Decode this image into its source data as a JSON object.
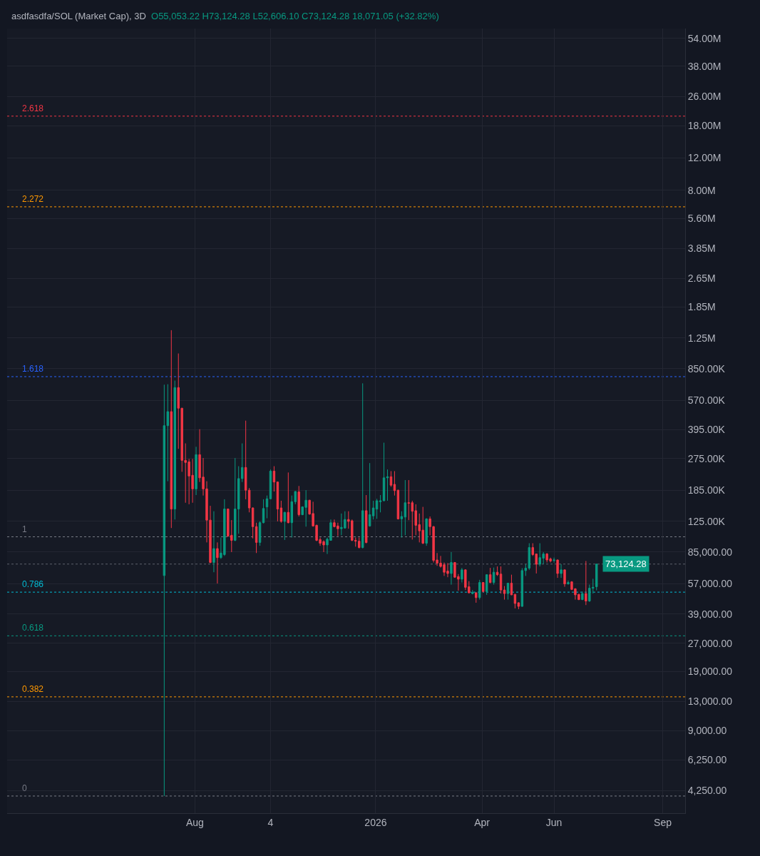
{
  "chart_data": {
    "type": "candlestick",
    "title": "asdfasdfa/SOL (Market Cap), 3D",
    "subtitle": "O55,053.22 H73,124.28 L52,606.10 C73,124.28 18,071.05 (+32.82%)",
    "x": [
      "2025-07-06",
      "2025-07-09",
      "2025-07-12",
      "2025-07-15",
      "2025-07-18",
      "2025-07-21",
      "2025-07-24",
      "2025-07-27",
      "2025-07-30",
      "2025-08-02",
      "2025-08-05",
      "2025-08-08",
      "2025-08-11",
      "2025-08-14",
      "2025-08-17",
      "2025-08-20",
      "2025-08-23",
      "2025-08-26",
      "2025-08-29",
      "2025-09-01",
      "2025-09-04",
      "2025-09-07",
      "2025-09-10",
      "2025-09-13",
      "2025-09-16",
      "2025-09-19",
      "2025-09-22",
      "2025-09-25",
      "2025-09-28",
      "2025-10-01",
      "2025-10-04",
      "2025-10-07",
      "2025-10-10",
      "2025-10-13",
      "2025-10-16",
      "2025-10-19",
      "2025-10-22",
      "2025-10-25",
      "2025-10-28",
      "2025-10-31",
      "2025-11-03",
      "2025-11-06",
      "2025-11-09",
      "2025-11-12",
      "2025-11-15",
      "2025-11-18",
      "2025-11-21",
      "2025-11-24",
      "2025-11-27",
      "2025-11-30",
      "2025-12-03",
      "2025-12-06",
      "2025-12-09",
      "2025-12-12",
      "2025-12-15",
      "2025-12-18",
      "2025-12-21",
      "2025-12-24",
      "2025-12-27",
      "2025-12-30",
      "2026-01-02",
      "2026-01-05",
      "2026-01-08",
      "2026-01-11",
      "2026-01-14",
      "2026-01-17",
      "2026-01-20",
      "2026-01-23",
      "2026-01-26",
      "2026-01-29",
      "2026-02-01",
      "2026-02-04",
      "2026-02-07",
      "2026-02-10",
      "2026-02-13",
      "2026-02-16",
      "2026-02-19",
      "2026-02-22",
      "2026-02-25",
      "2026-02-28",
      "2026-03-03",
      "2026-03-06",
      "2026-03-09",
      "2026-03-12",
      "2026-03-15",
      "2026-03-18",
      "2026-03-21",
      "2026-03-24",
      "2026-03-27",
      "2026-03-30",
      "2026-04-02",
      "2026-04-05",
      "2026-04-08",
      "2026-04-11",
      "2026-04-14",
      "2026-04-17",
      "2026-04-20",
      "2026-04-23",
      "2026-04-26",
      "2026-04-29",
      "2026-05-02",
      "2026-05-05",
      "2026-05-08",
      "2026-05-11",
      "2026-05-14",
      "2026-05-17",
      "2026-05-20",
      "2026-05-23",
      "2026-05-26",
      "2026-05-29",
      "2026-06-01",
      "2026-06-04",
      "2026-06-07",
      "2026-06-10",
      "2026-06-13",
      "2026-06-16",
      "2026-06-19",
      "2026-06-22",
      "2026-06-25",
      "2026-06-28",
      "2026-07-01",
      "2026-07-04",
      "2026-07-07"
    ],
    "ohlc": [
      [
        63300,
        696000,
        3970,
        416000
      ],
      [
        416000,
        700000,
        207000,
        496000
      ],
      [
        496000,
        1380000,
        115000,
        146000
      ],
      [
        146000,
        733000,
        128000,
        671000
      ],
      [
        671000,
        1030000,
        311000,
        518000
      ],
      [
        518000,
        520000,
        233000,
        269000
      ],
      [
        269000,
        333000,
        158000,
        262000
      ],
      [
        264000,
        274000,
        155000,
        221000
      ],
      [
        223000,
        274000,
        158000,
        188000
      ],
      [
        188000,
        319000,
        174000,
        289000
      ],
      [
        289000,
        398000,
        205000,
        216000
      ],
      [
        218000,
        277000,
        173000,
        188000
      ],
      [
        188000,
        207000,
        96000,
        127000
      ],
      [
        127000,
        152000,
        74000,
        74600
      ],
      [
        74600,
        142000,
        66000,
        88800
      ],
      [
        88800,
        96000,
        57300,
        79300
      ],
      [
        79300,
        102000,
        78000,
        84000
      ],
      [
        82400,
        165000,
        81000,
        146000
      ],
      [
        146000,
        147000,
        103000,
        104000
      ],
      [
        105000,
        127000,
        85000,
        98500
      ],
      [
        98500,
        277000,
        97500,
        146000
      ],
      [
        146000,
        250000,
        107000,
        214000
      ],
      [
        214000,
        333000,
        205000,
        246000
      ],
      [
        246000,
        443000,
        165000,
        185000
      ],
      [
        185000,
        190000,
        140000,
        148000
      ],
      [
        148000,
        149000,
        101000,
        117000
      ],
      [
        117000,
        123000,
        84000,
        96000
      ],
      [
        96000,
        125000,
        92000,
        123000
      ],
      [
        123000,
        165000,
        122000,
        147000
      ],
      [
        150000,
        173000,
        130000,
        166000
      ],
      [
        166000,
        240000,
        165000,
        235000
      ],
      [
        235000,
        250000,
        182000,
        205000
      ],
      [
        205000,
        206000,
        125000,
        146000
      ],
      [
        148000,
        162000,
        123000,
        125000
      ],
      [
        125000,
        141000,
        99000,
        140000
      ],
      [
        140000,
        231000,
        122000,
        123000
      ],
      [
        123000,
        173000,
        102000,
        160000
      ],
      [
        160000,
        183000,
        155000,
        182000
      ],
      [
        181000,
        195000,
        133000,
        136000
      ],
      [
        136000,
        151000,
        135000,
        150000
      ],
      [
        149000,
        185000,
        117000,
        163000
      ],
      [
        163000,
        164000,
        136000,
        137000
      ],
      [
        138000,
        160000,
        117000,
        118000
      ],
      [
        119000,
        120000,
        97500,
        98500
      ],
      [
        99500,
        102000,
        92000,
        95000
      ],
      [
        97000,
        98500,
        85000,
        93000
      ],
      [
        93000,
        102000,
        83000,
        100000
      ],
      [
        98500,
        128000,
        98000,
        123000
      ],
      [
        123000,
        128000,
        116000,
        117000
      ],
      [
        118000,
        123000,
        104000,
        114000
      ],
      [
        114000,
        138000,
        105000,
        116000
      ],
      [
        115000,
        142000,
        114000,
        128000
      ],
      [
        128000,
        142000,
        114000,
        125000
      ],
      [
        126000,
        128000,
        97500,
        98500
      ],
      [
        98500,
        102000,
        91000,
        97500
      ],
      [
        97500,
        102000,
        89000,
        90000
      ],
      [
        90000,
        708000,
        89000,
        143000
      ],
      [
        143000,
        174000,
        95000,
        95800
      ],
      [
        118000,
        260000,
        117000,
        136000
      ],
      [
        134000,
        162000,
        128000,
        148000
      ],
      [
        146000,
        166000,
        129000,
        162000
      ],
      [
        160000,
        174000,
        140000,
        162000
      ],
      [
        162000,
        336000,
        161000,
        216000
      ],
      [
        216000,
        240000,
        162000,
        219000
      ],
      [
        219000,
        235000,
        193000,
        197000
      ],
      [
        199000,
        235000,
        173000,
        184000
      ],
      [
        185000,
        186000,
        128000,
        129000
      ],
      [
        129000,
        142000,
        102000,
        133000
      ],
      [
        132000,
        210000,
        105000,
        158000
      ],
      [
        158000,
        210000,
        127000,
        157000
      ],
      [
        158000,
        162000,
        99500,
        142000
      ],
      [
        143000,
        155000,
        105000,
        119000
      ],
      [
        120000,
        138000,
        96000,
        111000
      ],
      [
        112000,
        150000,
        94000,
        95000
      ],
      [
        95000,
        130000,
        92000,
        129000
      ],
      [
        129000,
        133000,
        105000,
        117000
      ],
      [
        117000,
        118000,
        74600,
        76600
      ],
      [
        77000,
        84000,
        71500,
        74000
      ],
      [
        74000,
        81000,
        70000,
        71000
      ],
      [
        72500,
        74600,
        63000,
        66000
      ],
      [
        67000,
        74000,
        62000,
        65000
      ],
      [
        65000,
        85000,
        56500,
        74600
      ],
      [
        74600,
        75000,
        61500,
        62000
      ],
      [
        62500,
        64500,
        52400,
        60500
      ],
      [
        60500,
        69700,
        58000,
        68000
      ],
      [
        68000,
        68500,
        52800,
        54600
      ],
      [
        55000,
        59000,
        50500,
        51000
      ],
      [
        50500,
        52800,
        50000,
        51300
      ],
      [
        51000,
        51300,
        45000,
        48000
      ],
      [
        48000,
        60000,
        46800,
        58000
      ],
      [
        58000,
        58300,
        51300,
        51800
      ],
      [
        51800,
        64300,
        49700,
        64000
      ],
      [
        64000,
        69700,
        57500,
        58000
      ],
      [
        58000,
        70000,
        56500,
        66000
      ],
      [
        66000,
        71000,
        63000,
        64000
      ],
      [
        64500,
        71000,
        50500,
        52800
      ],
      [
        52800,
        55500,
        46800,
        50500
      ],
      [
        50500,
        57800,
        46800,
        57500
      ],
      [
        57500,
        64000,
        49500,
        49700
      ],
      [
        50000,
        50200,
        41900,
        44600
      ],
      [
        45000,
        45200,
        41500,
        43000
      ],
      [
        43000,
        69500,
        42800,
        67400
      ],
      [
        67400,
        73000,
        63000,
        69500
      ],
      [
        69500,
        95000,
        68000,
        90000
      ],
      [
        90000,
        95000,
        81000,
        82400
      ],
      [
        83000,
        83200,
        65000,
        73000
      ],
      [
        73000,
        95000,
        71000,
        79300
      ],
      [
        78700,
        85000,
        73000,
        83000
      ],
      [
        83000,
        84000,
        74600,
        77000
      ],
      [
        78000,
        79300,
        74600,
        76000
      ],
      [
        76600,
        79300,
        74600,
        77000
      ],
      [
        77000,
        77300,
        61500,
        65000
      ],
      [
        65000,
        73000,
        61500,
        68000
      ],
      [
        68000,
        68300,
        55000,
        57000
      ],
      [
        57000,
        59500,
        56500,
        58000
      ],
      [
        58500,
        59000,
        52800,
        53200
      ],
      [
        53600,
        54000,
        46800,
        49700
      ],
      [
        50000,
        50200,
        46500,
        46800
      ],
      [
        46800,
        51800,
        46500,
        50500
      ],
      [
        50500,
        76000,
        43700,
        46000
      ],
      [
        46000,
        56500,
        45500,
        54000
      ],
      [
        54000,
        60800,
        50500,
        54600
      ],
      [
        55053.22,
        73124.28,
        52606.1,
        73124.28
      ]
    ],
    "colors": [
      "#089981",
      "#089981",
      "#f23645",
      "#089981",
      "#f23645",
      "#f23645",
      "#f23645",
      "#f23645",
      "#f23645",
      "#089981",
      "#f23645",
      "#f23645",
      "#f23645",
      "#f23645",
      "#089981",
      "#f23645",
      "#089981",
      "#089981",
      "#f23645",
      "#f23645",
      "#089981",
      "#089981",
      "#089981",
      "#f23645",
      "#f23645",
      "#f23645",
      "#f23645",
      "#089981",
      "#089981",
      "#089981",
      "#089981",
      "#f23645",
      "#f23645",
      "#f23645",
      "#089981",
      "#f23645",
      "#089981",
      "#089981",
      "#f23645",
      "#089981",
      "#089981",
      "#f23645",
      "#f23645",
      "#f23645",
      "#f23645",
      "#f23645",
      "#089981",
      "#089981",
      "#f23645",
      "#f23645",
      "#089981",
      "#089981",
      "#f23645",
      "#f23645",
      "#f23645",
      "#f23645",
      "#089981",
      "#f23645",
      "#089981",
      "#089981",
      "#089981",
      "#089981",
      "#089981",
      "#089981",
      "#f23645",
      "#f23645",
      "#f23645",
      "#089981",
      "#089981",
      "#f23645",
      "#f23645",
      "#f23645",
      "#f23645",
      "#f23645",
      "#089981",
      "#f23645",
      "#f23645",
      "#f23645",
      "#f23645",
      "#f23645",
      "#f23645",
      "#089981",
      "#f23645",
      "#f23645",
      "#089981",
      "#f23645",
      "#f23645",
      "#089981",
      "#f23645",
      "#089981",
      "#f23645",
      "#089981",
      "#f23645",
      "#089981",
      "#f23645",
      "#f23645",
      "#f23645",
      "#089981",
      "#f23645",
      "#f23645",
      "#f23645",
      "#089981",
      "#089981",
      "#089981",
      "#f23645",
      "#f23645",
      "#089981",
      "#089981",
      "#f23645",
      "#f23645",
      "#089981",
      "#f23645",
      "#089981",
      "#f23645",
      "#089981",
      "#f23645",
      "#f23645",
      "#f23645",
      "#089981",
      "#f23645",
      "#089981",
      "#089981",
      "#089981"
    ],
    "log": true,
    "ylim": [
      3200,
      61000000
    ],
    "yticks": [
      {
        "value": 4250,
        "label": "4,250.00"
      },
      {
        "value": 6250,
        "label": "6,250.00"
      },
      {
        "value": 9000,
        "label": "9,000.00"
      },
      {
        "value": 13000,
        "label": "13,000.00"
      },
      {
        "value": 19000,
        "label": "19,000.00"
      },
      {
        "value": 27000,
        "label": "27,000.00"
      },
      {
        "value": 39000,
        "label": "39,000.00"
      },
      {
        "value": 57000,
        "label": "57,000.00"
      },
      {
        "value": 85000,
        "label": "85,000.00"
      },
      {
        "value": 125000,
        "label": "125.00K"
      },
      {
        "value": 185000,
        "label": "185.00K"
      },
      {
        "value": 275000,
        "label": "275.00K"
      },
      {
        "value": 395000,
        "label": "395.00K"
      },
      {
        "value": 570000,
        "label": "570.00K"
      },
      {
        "value": 850000,
        "label": "850.00K"
      },
      {
        "value": 1250000,
        "label": "1.25M"
      },
      {
        "value": 1850000,
        "label": "1.85M"
      },
      {
        "value": 2650000,
        "label": "2.65M"
      },
      {
        "value": 3850000,
        "label": "3.85M"
      },
      {
        "value": 5600000,
        "label": "5.60M"
      },
      {
        "value": 8000000,
        "label": "8.00M"
      },
      {
        "value": 12000000,
        "label": "12.00M"
      },
      {
        "value": 18000000,
        "label": "18.00M"
      },
      {
        "value": 26000000,
        "label": "26.00M"
      },
      {
        "value": 38000000,
        "label": "38.00M"
      },
      {
        "value": 54000000,
        "label": "54.00M"
      }
    ],
    "xlim": [
      "2025-02-23",
      "2026-09-20"
    ],
    "xticks": [
      {
        "value": "2025-08-01",
        "label": "Aug"
      },
      {
        "value": "2025-10-04",
        "label": "4"
      },
      {
        "value": "2026-01-01",
        "label": "2026"
      },
      {
        "value": "2026-04-01",
        "label": "Apr"
      },
      {
        "value": "2026-06-01",
        "label": "Jun"
      },
      {
        "value": "2026-09-01",
        "label": "Sep"
      }
    ],
    "grid": true,
    "ref_lines": [
      {
        "axis": "y",
        "value": 3970,
        "color": "#787b86",
        "line_style": "dotted"
      },
      {
        "axis": "y",
        "value": 13800,
        "color": "#ff9800",
        "line_style": "dotted"
      },
      {
        "axis": "y",
        "value": 29700,
        "color": "#089981",
        "line_style": "dotted"
      },
      {
        "axis": "y",
        "value": 51400,
        "color": "#00bcd4",
        "line_style": "dotted"
      },
      {
        "axis": "y",
        "value": 103000,
        "color": "#787b86",
        "line_style": "dotted"
      },
      {
        "axis": "y",
        "value": 770000,
        "color": "#2962ff",
        "line_style": "dotted"
      },
      {
        "axis": "y",
        "value": 6500000,
        "color": "#ff9800",
        "line_style": "dotted"
      },
      {
        "axis": "y",
        "value": 20300000,
        "color": "#f23645",
        "line_style": "dotted"
      },
      {
        "axis": "y",
        "value": 73124.28,
        "color": "#5d606b",
        "line_style": "dotted"
      }
    ],
    "annotations": [
      {
        "text": "73,124.28",
        "x": "2026-07-07",
        "y": 73124.28
      },
      {
        "text": "0",
        "y": 3970
      },
      {
        "text": "0.382",
        "y": 13800
      },
      {
        "text": "0.618",
        "y": 29700
      },
      {
        "text": "0.786",
        "y": 51400
      },
      {
        "text": "1",
        "y": 103000
      },
      {
        "text": "1.618",
        "y": 770000
      },
      {
        "text": "2.272",
        "y": 6500000
      },
      {
        "text": "2.618",
        "y": 20300000
      }
    ]
  }
}
